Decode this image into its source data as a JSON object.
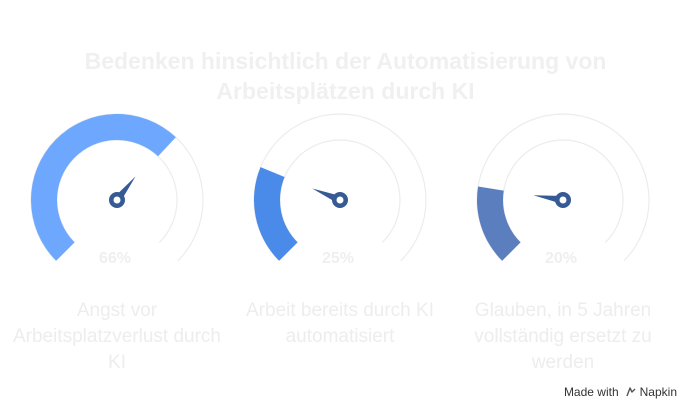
{
  "title_line1": "Bedenken hinsichtlich der Automatisierung von",
  "title_line2": "Arbeitsplätzen durch KI",
  "chart_data": {
    "type": "gauge",
    "title": "Bedenken hinsichtlich der Automatisierung von Arbeitsplätzen durch KI",
    "unit": "%",
    "range": [
      0,
      100
    ],
    "gauges": [
      {
        "label": "Angst vor Arbeitsplatzverlust durch KI",
        "value": 66,
        "value_label": "66%",
        "color": "#6ea8fe"
      },
      {
        "label": "Arbeit bereits durch KI automatisiert",
        "value": 25,
        "value_label": "25%",
        "color": "#4a8ae8"
      },
      {
        "label": "Glauben, in 5 Jahren vollständig ersetzt zu werden",
        "value": 20,
        "value_label": "20%",
        "color": "#5b7fbe"
      }
    ],
    "needle_color": "#355a94",
    "value_label_color": "#efefef",
    "track_color": "#ececec"
  },
  "footer": {
    "made_with": "Made with",
    "brand": "Napkin"
  }
}
